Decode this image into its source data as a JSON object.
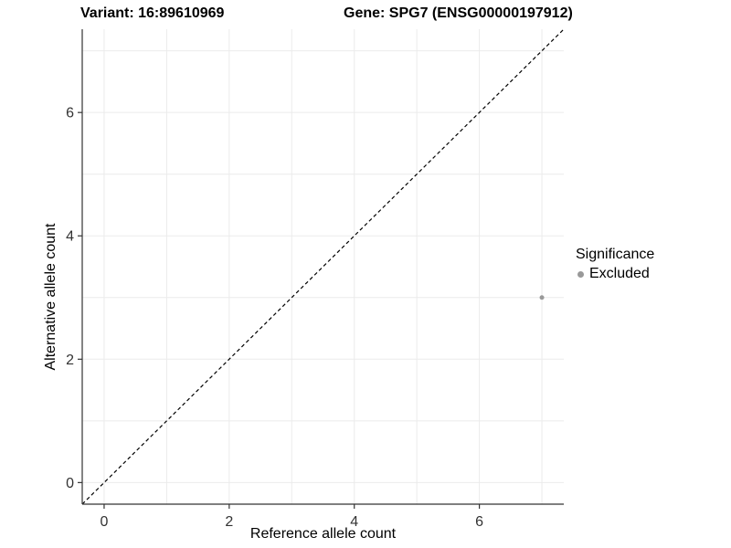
{
  "titles": {
    "variant": "Variant: 16:89610969",
    "gene": "Gene: SPG7 (ENSG00000197912)"
  },
  "colors": {
    "background": "#ffffff",
    "grid": "#ebebeb",
    "axis": "#333333",
    "tick_label": "#333333",
    "text": "#000000",
    "identity_line": "#000000",
    "excluded_point": "#999999"
  },
  "chart_data": {
    "type": "scatter",
    "title_left": "Variant: 16:89610969",
    "title_right": "Gene: SPG7 (ENSG00000197912)",
    "xlabel": "Reference allele count",
    "ylabel": "Alternative allele count",
    "xlim": [
      -0.35,
      7.35
    ],
    "ylim": [
      -0.35,
      7.35
    ],
    "x_major_ticks": [
      0,
      2,
      4,
      6
    ],
    "y_major_ticks": [
      0,
      2,
      4,
      6
    ],
    "grid": {
      "min": 0,
      "max": 7,
      "step": 1,
      "visible": true
    },
    "identity_line": {
      "style": "dashed",
      "from": [
        -0.35,
        -0.35
      ],
      "to": [
        7.35,
        7.35
      ]
    },
    "series": [
      {
        "name": "Excluded",
        "color": "#999999",
        "point_radius": 2.5,
        "points": [
          [
            7,
            3
          ]
        ]
      }
    ],
    "legend": {
      "title": "Significance",
      "position": "right",
      "items": [
        {
          "label": "Excluded",
          "color": "#999999"
        }
      ]
    }
  }
}
